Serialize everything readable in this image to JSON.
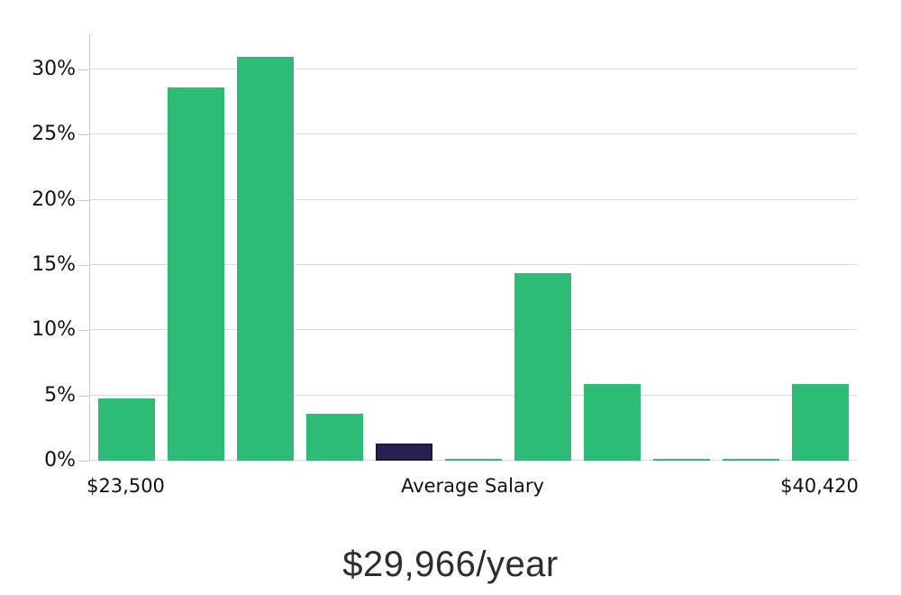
{
  "chart_data": {
    "type": "bar",
    "title": "$29,966/year",
    "xlabel": "",
    "ylabel": "",
    "unit": "%",
    "ylim": [
      0,
      32.7
    ],
    "grid": "horizontal",
    "legend": "none",
    "y_ticks": [
      {
        "value": 0,
        "label": "0%"
      },
      {
        "value": 5,
        "label": "5%"
      },
      {
        "value": 10,
        "label": "10%"
      },
      {
        "value": 15,
        "label": "15%"
      },
      {
        "value": 20,
        "label": "20%"
      },
      {
        "value": 25,
        "label": "25%"
      },
      {
        "value": 30,
        "label": "30%"
      }
    ],
    "values": [
      4.8,
      28.6,
      31.0,
      3.6,
      1.3,
      0.15,
      14.4,
      5.9,
      0.15,
      0.15,
      5.9
    ],
    "highlight_index": 4,
    "highlight_meaning": "average salary bin",
    "x_tick_labels": [
      {
        "bar_index": 0,
        "label": "$23,500"
      },
      {
        "bar_index": 5,
        "label": "Average Salary"
      },
      {
        "bar_index": 10,
        "label": "$40,420"
      }
    ],
    "colors": {
      "bar": "#2dbc76",
      "highlight_bar": "#252150",
      "highlight_edge": "#1a1838",
      "gridline": "#dcdcdc",
      "axis": "#c8c8c8",
      "tick_text": "#111111",
      "title_text": "#2d2d2d",
      "background": "#ffffff"
    }
  }
}
